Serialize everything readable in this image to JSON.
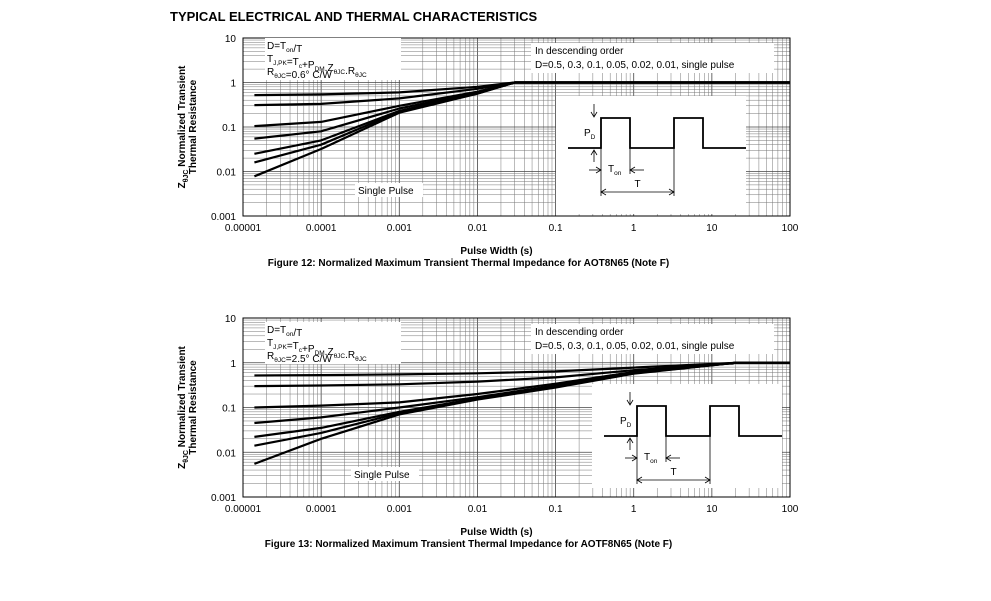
{
  "page": {
    "title": "TYPICAL ELECTRICAL AND THERMAL CHARACTERISTICS"
  },
  "chart_data": [
    {
      "type": "line",
      "caption": "Figure 12: Normalized Maximum Transient Thermal Impedance for AOT8N65 (Note F)",
      "xlabel": "Pulse Width (s)",
      "ylabel_line1": "Normalized Transient",
      "ylabel_line2": "Thermal Resistance",
      "ylabel_symbol": "Z",
      "ylabel_symbol_sub": "θJC",
      "x_scale": "log",
      "y_scale": "log",
      "xlim": [
        1e-05,
        100
      ],
      "ylim": [
        0.001,
        10
      ],
      "x_tick_labels": [
        "0.00001",
        "0.0001",
        "0.001",
        "0.01",
        "0.1",
        "1",
        "10",
        "100"
      ],
      "y_tick_labels": [
        "0.001",
        "0.01",
        "0.1",
        "1",
        "10"
      ],
      "grid": true,
      "legend": {
        "title": "In descending order",
        "values": "D=0.5, 0.3, 0.1, 0.05, 0.02, 0.01, single pulse"
      },
      "formula": {
        "line1_main": "D=T",
        "line1_sub": "on",
        "line1_tail": "/T",
        "line2": [
          [
            "T",
            "J,PK"
          ],
          [
            "=T",
            "c"
          ],
          [
            "+P",
            "DM"
          ],
          [
            ".Z",
            "θJC"
          ],
          [
            ".R",
            "θJC"
          ]
        ],
        "line3_main": "R",
        "line3_sub": "θJC",
        "line3_tail": "=0.6°  C/W"
      },
      "annotation": "Single Pulse",
      "inset": {
        "pd_label": "P",
        "pd_sub": "D",
        "ton_label": "T",
        "ton_sub": "on",
        "t_label": "T"
      },
      "series": [
        {
          "name": "D=0.5",
          "x": [
            1.4e-05,
            0.0001,
            0.001,
            0.01,
            0.03,
            100
          ],
          "y": [
            0.52,
            0.54,
            0.6,
            0.8,
            1.0,
            1.0
          ]
        },
        {
          "name": "D=0.3",
          "x": [
            1.4e-05,
            0.0001,
            0.001,
            0.01,
            0.03,
            100
          ],
          "y": [
            0.31,
            0.33,
            0.44,
            0.72,
            1.0,
            1.0
          ]
        },
        {
          "name": "D=0.1",
          "x": [
            1.4e-05,
            0.0001,
            0.001,
            0.01,
            0.03,
            100
          ],
          "y": [
            0.105,
            0.13,
            0.3,
            0.62,
            1.0,
            1.0
          ]
        },
        {
          "name": "D=0.05",
          "x": [
            1.4e-05,
            0.0001,
            0.001,
            0.01,
            0.03,
            100
          ],
          "y": [
            0.055,
            0.08,
            0.26,
            0.6,
            1.0,
            1.0
          ]
        },
        {
          "name": "D=0.02",
          "x": [
            1.4e-05,
            0.0001,
            0.001,
            0.01,
            0.03,
            100
          ],
          "y": [
            0.025,
            0.05,
            0.23,
            0.58,
            1.0,
            1.0
          ]
        },
        {
          "name": "D=0.01",
          "x": [
            1.4e-05,
            0.0001,
            0.001,
            0.01,
            0.03,
            100
          ],
          "y": [
            0.016,
            0.04,
            0.22,
            0.57,
            1.0,
            1.0
          ]
        },
        {
          "name": "single pulse",
          "x": [
            1.4e-05,
            0.0001,
            0.001,
            0.01,
            0.03,
            100
          ],
          "y": [
            0.0078,
            0.032,
            0.21,
            0.56,
            1.0,
            1.0
          ]
        }
      ]
    },
    {
      "type": "line",
      "caption": "Figure 13: Normalized Maximum Transient Thermal Impedance for AOTF8N65 (Note F)",
      "xlabel": "Pulse Width (s)",
      "ylabel_line1": "Normalized Transient",
      "ylabel_line2": "Thermal Resistance",
      "ylabel_symbol": "Z",
      "ylabel_symbol_sub": "θJC",
      "x_scale": "log",
      "y_scale": "log",
      "xlim": [
        1e-05,
        100
      ],
      "ylim": [
        0.001,
        10
      ],
      "x_tick_labels": [
        "0.00001",
        "0.0001",
        "0.001",
        "0.01",
        "0.1",
        "1",
        "10",
        "100"
      ],
      "y_tick_labels": [
        "0.001",
        "0.01",
        "0.1",
        "1",
        "10"
      ],
      "grid": true,
      "legend": {
        "title": "In descending order",
        "values": "D=0.5, 0.3, 0.1, 0.05, 0.02, 0.01, single pulse"
      },
      "formula": {
        "line1_main": "D=T",
        "line1_sub": "on",
        "line1_tail": "/T",
        "line2": [
          [
            "T",
            "J,PK"
          ],
          [
            "=T",
            "c"
          ],
          [
            "+P",
            "DM"
          ],
          [
            ".Z",
            "θJC"
          ],
          [
            ".R",
            "θJC"
          ]
        ],
        "line3_main": "R",
        "line3_sub": "θJC",
        "line3_tail": "=2.5°  C/W"
      },
      "annotation": "Single Pulse",
      "inset": {
        "pd_label": "P",
        "pd_sub": "D",
        "ton_label": "T",
        "ton_sub": "on",
        "t_label": "T"
      },
      "series": [
        {
          "name": "D=0.5",
          "x": [
            1.4e-05,
            0.0001,
            0.001,
            0.01,
            0.1,
            1,
            20,
            100
          ],
          "y": [
            0.52,
            0.53,
            0.55,
            0.58,
            0.64,
            0.78,
            1.0,
            1.0
          ]
        },
        {
          "name": "D=0.3",
          "x": [
            1.4e-05,
            0.0001,
            0.001,
            0.01,
            0.1,
            1,
            20,
            100
          ],
          "y": [
            0.3,
            0.31,
            0.33,
            0.38,
            0.47,
            0.68,
            1.0,
            1.0
          ]
        },
        {
          "name": "D=0.1",
          "x": [
            1.4e-05,
            0.0001,
            0.001,
            0.01,
            0.1,
            1,
            20,
            100
          ],
          "y": [
            0.1,
            0.11,
            0.13,
            0.2,
            0.34,
            0.62,
            1.0,
            1.0
          ]
        },
        {
          "name": "D=0.05",
          "x": [
            1.4e-05,
            0.0001,
            0.001,
            0.01,
            0.1,
            1,
            20,
            100
          ],
          "y": [
            0.045,
            0.06,
            0.1,
            0.17,
            0.31,
            0.6,
            1.0,
            1.0
          ]
        },
        {
          "name": "D=0.02",
          "x": [
            1.4e-05,
            0.0001,
            0.001,
            0.01,
            0.1,
            1,
            20,
            100
          ],
          "y": [
            0.022,
            0.035,
            0.08,
            0.16,
            0.3,
            0.59,
            1.0,
            1.0
          ]
        },
        {
          "name": "D=0.01",
          "x": [
            1.4e-05,
            0.0001,
            0.001,
            0.01,
            0.1,
            1,
            20,
            100
          ],
          "y": [
            0.014,
            0.027,
            0.075,
            0.155,
            0.29,
            0.58,
            1.0,
            1.0
          ]
        },
        {
          "name": "single pulse",
          "x": [
            1.4e-05,
            0.0001,
            0.001,
            0.01,
            0.1,
            1,
            20,
            100
          ],
          "y": [
            0.0055,
            0.02,
            0.07,
            0.15,
            0.28,
            0.57,
            1.0,
            1.0
          ]
        }
      ]
    }
  ]
}
